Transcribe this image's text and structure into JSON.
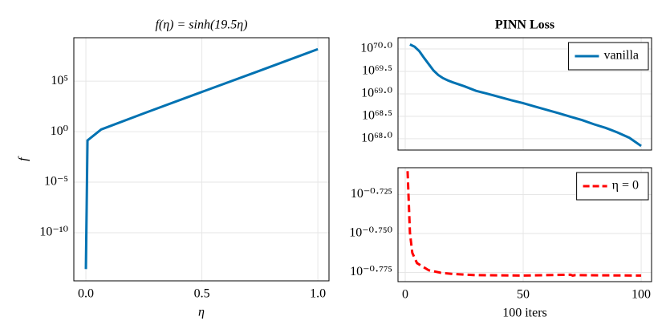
{
  "chart_data": [
    {
      "type": "line",
      "title": "f(η) = sinh(19.5η)",
      "xlabel": "η",
      "ylabel": "f",
      "log_y": true,
      "grid": true,
      "show_xtick_labels": true,
      "x": [
        1.3e-15,
        0.007,
        0.066,
        0.25,
        0.5,
        0.75,
        1.0
      ],
      "series": [
        {
          "color": "#0072b2",
          "line_style": "solid",
          "values": [
            2.5e-14,
            0.137,
            1.66,
            65.5,
            8594,
            1100000,
            147000000
          ]
        }
      ],
      "xlim": [
        -0.052,
        1.048
      ],
      "ylim": [
        1.7e-15,
        2000000000.0
      ],
      "xticks": [
        {
          "value": 0,
          "label": "0.0"
        },
        {
          "value": 0.5,
          "label": "0.5"
        },
        {
          "value": 1,
          "label": "1.0"
        }
      ],
      "yticks": [
        {
          "value": 1e-10,
          "label": "10⁻¹⁰"
        },
        {
          "value": 1e-05,
          "label": "10⁻⁵"
        },
        {
          "value": 1,
          "label": "10⁰"
        },
        {
          "value": 100000,
          "label": "10⁵"
        }
      ]
    },
    {
      "type": "line",
      "title": "PINN Loss",
      "log_y": true,
      "grid": true,
      "show_xtick_labels": false,
      "legend": "top-right",
      "x": [
        2,
        4,
        6,
        8,
        10,
        12,
        14,
        16,
        18,
        20,
        25,
        30,
        35,
        40,
        45,
        50,
        55,
        60,
        65,
        70,
        75,
        80,
        85,
        90,
        95,
        100
      ],
      "series": [
        {
          "name": "vanilla",
          "color": "#0072b2",
          "line_style": "solid",
          "values": [
            1.26e+70,
            1.12e+70,
            8.9e+69,
            6.31e+69,
            4.57e+69,
            3.31e+69,
            2.63e+69,
            2.24e+69,
            2e+69,
            1.82e+69,
            1.48e+69,
            1.17e+69,
            1e+69,
            8.5e+68,
            7.2e+68,
            6.2e+68,
            5.2e+68,
            4.4e+68,
            3.7e+68,
            3.1e+68,
            2.6e+68,
            2.1e+68,
            1.74e+68,
            1.38e+68,
            1.05e+68,
            6.9e+67
          ]
        }
      ],
      "xlim": [
        -3.06,
        104.4
      ],
      "ylim": [
        5.6e+67,
        1.78e+70
      ],
      "xticks": [
        0,
        50,
        100
      ],
      "yticks": [
        {
          "value": 1e+68,
          "label": "10⁶⁸·⁰"
        },
        {
          "value": 3.162e+68,
          "label": "10⁶⁸·⁵"
        },
        {
          "value": 1e+69,
          "label": "10⁶⁹·⁰"
        },
        {
          "value": 3.162e+69,
          "label": "10⁶⁹·⁵"
        },
        {
          "value": 1e+70,
          "label": "10⁷⁰·⁰"
        }
      ]
    },
    {
      "type": "line",
      "xlabel": "100 iters",
      "log_y": true,
      "grid": true,
      "show_xtick_labels": true,
      "legend": "top-right",
      "x": [
        1,
        2,
        3,
        5,
        10,
        15,
        20,
        30,
        50,
        70,
        71,
        72,
        100
      ],
      "series": [
        {
          "name": "η = 0",
          "color": "#ff0000",
          "line_style": "dashed",
          "values": [
            0.195,
            0.178,
            0.1728,
            0.1702,
            0.1684,
            0.1678,
            0.1675,
            0.1672,
            0.1671,
            0.1673,
            0.1671,
            0.1672,
            0.1671
          ]
        }
      ],
      "xlim": [
        -3.06,
        104.4
      ],
      "ylim": [
        0.1656,
        0.196
      ],
      "xticks": [
        0,
        50,
        100
      ],
      "yticks": [
        {
          "value": 0.16788,
          "label": "10⁻⁰·⁷⁷⁵"
        },
        {
          "value": 0.17783,
          "label": "10⁻⁰·⁷⁵⁰"
        },
        {
          "value": 0.18836,
          "label": "10⁻⁰·⁷²⁵"
        }
      ]
    }
  ]
}
